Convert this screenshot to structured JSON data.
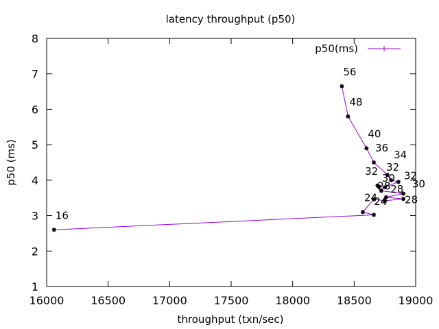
{
  "chart_data": {
    "type": "line",
    "title": "latency throughput (p50)",
    "xlabel": "throughput (txn/sec)",
    "ylabel": "p50 (ms)",
    "xlim": [
      16000,
      19000
    ],
    "ylim": [
      1,
      8
    ],
    "xticks": [
      16000,
      16500,
      17000,
      17500,
      18000,
      18500,
      19000
    ],
    "yticks": [
      1,
      2,
      3,
      4,
      5,
      6,
      7,
      8
    ],
    "grid": false,
    "legend": {
      "position": "top-right"
    },
    "series": [
      {
        "name": "p50(ms)",
        "color": "#9400d3",
        "marker_color": "#000000",
        "x": [
          16060,
          18660,
          18570,
          18660,
          18750,
          18900,
          18760,
          18900,
          18720,
          18690,
          18700,
          18750,
          18860,
          18800,
          18770,
          18660,
          18600,
          18450,
          18400
        ],
        "y": [
          2.6,
          3.02,
          3.1,
          3.46,
          3.42,
          3.47,
          3.52,
          3.62,
          3.7,
          3.85,
          3.82,
          3.8,
          3.95,
          4.0,
          4.15,
          4.5,
          4.9,
          5.8,
          6.65
        ],
        "labels": [
          {
            "text": "16",
            "x": 16060,
            "y": 2.6,
            "dx": 2,
            "dy": -16
          },
          {
            "text": "24",
            "x": 18660,
            "y": 3.02,
            "dx": -14,
            "dy": -20
          },
          {
            "text": "24",
            "x": 18750,
            "y": 3.42,
            "dx": -16,
            "dy": 6
          },
          {
            "text": "28",
            "x": 18900,
            "y": 3.62,
            "dx": 2,
            "dy": 14
          },
          {
            "text": "28",
            "x": 18690,
            "y": 3.85,
            "dx": 0,
            "dy": 6
          },
          {
            "text": "28",
            "x": 18750,
            "y": 3.8,
            "dx": 8,
            "dy": 8
          },
          {
            "text": "30",
            "x": 18860,
            "y": 3.95,
            "dx": 20,
            "dy": 8
          },
          {
            "text": "30",
            "x": 18770,
            "y": 4.15,
            "dx": -8,
            "dy": 10
          },
          {
            "text": "32",
            "x": 18800,
            "y": 4.0,
            "dx": -38,
            "dy": -8
          },
          {
            "text": "32",
            "x": 18760,
            "y": 4.15,
            "dx": 0,
            "dy": -6
          },
          {
            "text": "32",
            "x": 18860,
            "y": 3.95,
            "dx": 8,
            "dy": -4
          },
          {
            "text": "34",
            "x": 18800,
            "y": 4.0,
            "dx": 4,
            "dy": -32
          },
          {
            "text": "36",
            "x": 18660,
            "y": 4.5,
            "dx": 2,
            "dy": -16
          },
          {
            "text": "40",
            "x": 18600,
            "y": 4.9,
            "dx": 2,
            "dy": -16
          },
          {
            "text": "48",
            "x": 18450,
            "y": 5.8,
            "dx": 2,
            "dy": -16
          },
          {
            "text": "56",
            "x": 18400,
            "y": 6.65,
            "dx": 2,
            "dy": -16
          }
        ]
      }
    ]
  }
}
